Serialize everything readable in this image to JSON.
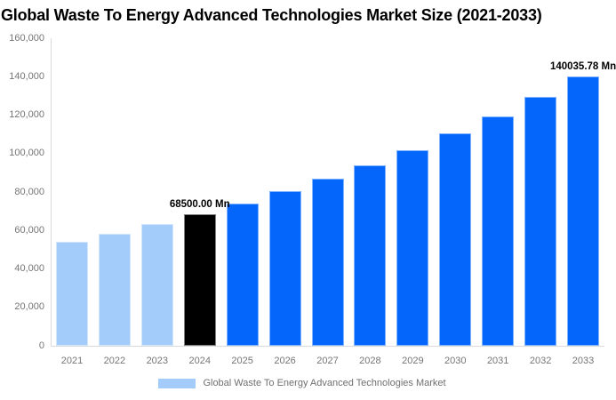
{
  "header": {
    "title": "Global Waste To Energy Advanced Technologies Market Size (2021-2033)"
  },
  "legend": {
    "label": "Global Waste To Energy Advanced Technologies Market",
    "swatch_color": "#A4CCFA"
  },
  "colors": {
    "historical_bar": "#A4CCFA",
    "base_year_bar": "#000000",
    "forecast_bar": "#0566FB",
    "axis_line": "#D9D9D9",
    "tick_text": "#757575",
    "legend_text": "#6F6F6F",
    "data_label_text": "#000000",
    "background": "#FFFFFF"
  },
  "chart_data": {
    "type": "bar",
    "title": "Global Waste To Energy Advanced Technologies Market Size (2021-2033)",
    "unit": "Mn",
    "categories": [
      "2021",
      "2022",
      "2023",
      "2024",
      "2025",
      "2026",
      "2027",
      "2028",
      "2029",
      "2030",
      "2031",
      "2032",
      "2033"
    ],
    "values": [
      54000,
      58400,
      63300,
      68500,
      74200,
      80300,
      86900,
      94100,
      101900,
      110300,
      119500,
      129400,
      140035.78
    ],
    "bar_roles": [
      "historical",
      "historical",
      "historical",
      "base",
      "forecast",
      "forecast",
      "forecast",
      "forecast",
      "forecast",
      "forecast",
      "forecast",
      "forecast",
      "forecast"
    ],
    "role_colors": {
      "historical": "#A4CCFA",
      "base": "#000000",
      "forecast": "#0566FB"
    },
    "data_labels": [
      {
        "index": 3,
        "text": "68500.00 Mn"
      },
      {
        "index": 12,
        "text": "140035.78 Mn"
      }
    ],
    "xlabel": "",
    "ylabel": "",
    "ylim": [
      0,
      160000
    ],
    "ytick_step": 20000,
    "yticks": [
      {
        "value": 0,
        "label": "0"
      },
      {
        "value": 20000,
        "label": "20,000"
      },
      {
        "value": 40000,
        "label": "40,000"
      },
      {
        "value": 60000,
        "label": "60,000"
      },
      {
        "value": 80000,
        "label": "80,000"
      },
      {
        "value": 100000,
        "label": "100,000"
      },
      {
        "value": 120000,
        "label": "120,000"
      },
      {
        "value": 140000,
        "label": "140,000"
      },
      {
        "value": 160000,
        "label": "160,000"
      }
    ],
    "grid": false,
    "legend_position": "bottom"
  }
}
